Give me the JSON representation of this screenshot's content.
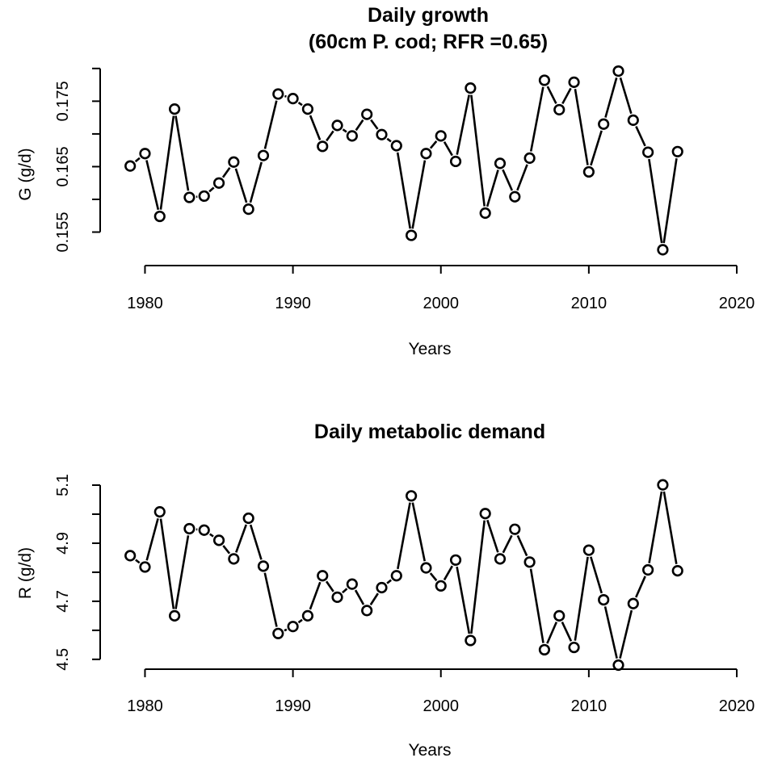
{
  "chart_data": [
    {
      "type": "line",
      "title_lines": [
        "Daily growth",
        "(60cm P. cod; RFR =0.65)"
      ],
      "xlabel": "Years",
      "ylabel": "G (g/d)",
      "xlim": [
        1978.5,
        2020
      ],
      "ylim": [
        0.1505,
        0.1785
      ],
      "xticks": [
        1980,
        1990,
        2000,
        2010,
        2020
      ],
      "xtick_labels": [
        "1980",
        "1990",
        "2000",
        "2010",
        "2020"
      ],
      "yticks": [
        0.155,
        0.16,
        0.165,
        0.17,
        0.175,
        0.18
      ],
      "ytick_labels": [
        "0.155",
        "",
        "0.165",
        "",
        "0.175",
        ""
      ],
      "grid": false,
      "markers": "open-circle",
      "x": [
        1979,
        1980,
        1981,
        1982,
        1983,
        1984,
        1985,
        1986,
        1987,
        1988,
        1989,
        1990,
        1991,
        1992,
        1993,
        1994,
        1995,
        1996,
        1997,
        1998,
        1999,
        2000,
        2001,
        2002,
        2003,
        2004,
        2005,
        2006,
        2007,
        2008,
        2009,
        2010,
        2011,
        2012,
        2013,
        2014,
        2015,
        2016
      ],
      "y": [
        0.1651,
        0.167,
        0.1574,
        0.1738,
        0.1603,
        0.1605,
        0.1625,
        0.1657,
        0.1585,
        0.1667,
        0.1761,
        0.1754,
        0.1738,
        0.1681,
        0.1713,
        0.1697,
        0.173,
        0.1699,
        0.1682,
        0.1545,
        0.167,
        0.1697,
        0.1658,
        0.177,
        0.1579,
        0.1655,
        0.1604,
        0.1663,
        0.1782,
        0.1737,
        0.1779,
        0.1642,
        0.1715,
        0.1796,
        0.1721,
        0.1672,
        0.1523,
        0.1673
      ]
    },
    {
      "type": "line",
      "title_lines": [
        "Daily metabolic demand"
      ],
      "xlabel": "Years",
      "ylabel": "R (g/d)",
      "xlim": [
        1978.5,
        2020
      ],
      "ylim": [
        4.48,
        5.1
      ],
      "xticks": [
        1980,
        1990,
        2000,
        2010,
        2020
      ],
      "xtick_labels": [
        "1980",
        "1990",
        "2000",
        "2010",
        "2020"
      ],
      "yticks": [
        4.5,
        4.6,
        4.7,
        4.8,
        4.9,
        5.0,
        5.1
      ],
      "ytick_labels": [
        "4.5",
        "",
        "4.7",
        "",
        "4.9",
        "",
        "5.1"
      ],
      "grid": false,
      "markers": "open-circle",
      "x": [
        1979,
        1980,
        1981,
        1982,
        1983,
        1984,
        1985,
        1986,
        1987,
        1988,
        1989,
        1990,
        1991,
        1992,
        1993,
        1994,
        1995,
        1996,
        1997,
        1998,
        1999,
        2000,
        2001,
        2002,
        2003,
        2004,
        2005,
        2006,
        2007,
        2008,
        2009,
        2010,
        2011,
        2012,
        2013,
        2014,
        2015,
        2016
      ],
      "y": [
        4.857,
        4.818,
        5.008,
        4.65,
        4.95,
        4.945,
        4.91,
        4.846,
        4.986,
        4.821,
        4.589,
        4.613,
        4.65,
        4.788,
        4.714,
        4.759,
        4.668,
        4.747,
        4.788,
        5.063,
        4.815,
        4.753,
        4.842,
        4.565,
        5.002,
        4.846,
        4.948,
        4.835,
        4.533,
        4.65,
        4.541,
        4.876,
        4.705,
        4.48,
        4.692,
        4.808,
        5.101,
        4.805
      ]
    }
  ]
}
